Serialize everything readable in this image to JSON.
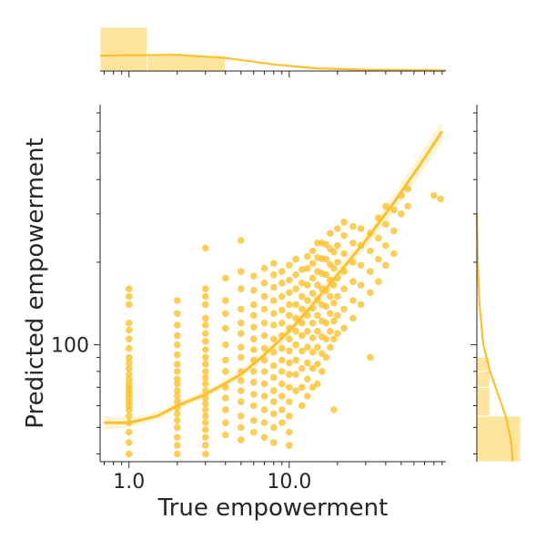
{
  "colors": {
    "accent": "#fbc02d",
    "fill_light": "#fde08c",
    "text": "#262626"
  },
  "chart_data": {
    "type": "scatter",
    "kind": "jointplot with regression fit and marginal histograms + KDE",
    "xlabel": "True empowerment",
    "ylabel": "Predicted empowerment",
    "xscale": "log",
    "yscale": "log",
    "xlim": [
      0.66,
      95
    ],
    "ylim": [
      37.5,
      750
    ],
    "x_tick_labels": [
      {
        "value": 1,
        "label": "1.0"
      },
      {
        "value": 10,
        "label": "10.0"
      }
    ],
    "y_tick_labels": [
      {
        "value": 100,
        "label": "100"
      }
    ],
    "points": [
      [
        1,
        40
      ],
      [
        1,
        44
      ],
      [
        1,
        48
      ],
      [
        1,
        52
      ],
      [
        1,
        55
      ],
      [
        1,
        58
      ],
      [
        1,
        60
      ],
      [
        1,
        62
      ],
      [
        1,
        64
      ],
      [
        1,
        66
      ],
      [
        1,
        68
      ],
      [
        1,
        70
      ],
      [
        1,
        72
      ],
      [
        1,
        75
      ],
      [
        1,
        78
      ],
      [
        1,
        82
      ],
      [
        1,
        86
      ],
      [
        1,
        90
      ],
      [
        1,
        97
      ],
      [
        1,
        105
      ],
      [
        1,
        113
      ],
      [
        1,
        120
      ],
      [
        1,
        140
      ],
      [
        1,
        150
      ],
      [
        1,
        160
      ],
      [
        2,
        40
      ],
      [
        2,
        43
      ],
      [
        2,
        46
      ],
      [
        2,
        50
      ],
      [
        2,
        53
      ],
      [
        2,
        56
      ],
      [
        2,
        59
      ],
      [
        2,
        62
      ],
      [
        2,
        65
      ],
      [
        2,
        68
      ],
      [
        2,
        72
      ],
      [
        2,
        75
      ],
      [
        2,
        80
      ],
      [
        2,
        85
      ],
      [
        2,
        92
      ],
      [
        2,
        100
      ],
      [
        2,
        108
      ],
      [
        2,
        118
      ],
      [
        2,
        130
      ],
      [
        2,
        145
      ],
      [
        3,
        40
      ],
      [
        3,
        43
      ],
      [
        3,
        46
      ],
      [
        3,
        49
      ],
      [
        3,
        52
      ],
      [
        3,
        55
      ],
      [
        3,
        58
      ],
      [
        3,
        61
      ],
      [
        3,
        64
      ],
      [
        3,
        68
      ],
      [
        3,
        72
      ],
      [
        3,
        76
      ],
      [
        3,
        80
      ],
      [
        3,
        85
      ],
      [
        3,
        90
      ],
      [
        3,
        96
      ],
      [
        3,
        103
      ],
      [
        3,
        110
      ],
      [
        3,
        118
      ],
      [
        3,
        125
      ],
      [
        3,
        140
      ],
      [
        3,
        150
      ],
      [
        3,
        160
      ],
      [
        3,
        225
      ],
      [
        4,
        47
      ],
      [
        4,
        52
      ],
      [
        4,
        58
      ],
      [
        4,
        64
      ],
      [
        4,
        70
      ],
      [
        4,
        80
      ],
      [
        4,
        88
      ],
      [
        4,
        100
      ],
      [
        4,
        115
      ],
      [
        4,
        130
      ],
      [
        4,
        145
      ],
      [
        4,
        175
      ],
      [
        5,
        45
      ],
      [
        5,
        50
      ],
      [
        5,
        55
      ],
      [
        5,
        62
      ],
      [
        5,
        68
      ],
      [
        5,
        74
      ],
      [
        5,
        80
      ],
      [
        5,
        90
      ],
      [
        5,
        98
      ],
      [
        5,
        110
      ],
      [
        5,
        120
      ],
      [
        5,
        135
      ],
      [
        5,
        160
      ],
      [
        5,
        185
      ],
      [
        5,
        240
      ],
      [
        6,
        48
      ],
      [
        6,
        53
      ],
      [
        6,
        60
      ],
      [
        6,
        66
      ],
      [
        6,
        73
      ],
      [
        6,
        80
      ],
      [
        6,
        88
      ],
      [
        6,
        96
      ],
      [
        6,
        105
      ],
      [
        6,
        116
      ],
      [
        6,
        128
      ],
      [
        6,
        140
      ],
      [
        6,
        158
      ],
      [
        6,
        178
      ],
      [
        7,
        46
      ],
      [
        7,
        52
      ],
      [
        7,
        58
      ],
      [
        7,
        65
      ],
      [
        7,
        72
      ],
      [
        7,
        80
      ],
      [
        7,
        88
      ],
      [
        7,
        97
      ],
      [
        7,
        108
      ],
      [
        7,
        120
      ],
      [
        7,
        135
      ],
      [
        7,
        150
      ],
      [
        7,
        168
      ],
      [
        7,
        190
      ],
      [
        8,
        44
      ],
      [
        8,
        50
      ],
      [
        8,
        56
      ],
      [
        8,
        62
      ],
      [
        8,
        68
      ],
      [
        8,
        76
      ],
      [
        8,
        84
      ],
      [
        8,
        94
      ],
      [
        8,
        105
      ],
      [
        8,
        118
      ],
      [
        8,
        130
      ],
      [
        8,
        145
      ],
      [
        8,
        162
      ],
      [
        8,
        180
      ],
      [
        8,
        198
      ],
      [
        9,
        52
      ],
      [
        9,
        58
      ],
      [
        9,
        65
      ],
      [
        9,
        72
      ],
      [
        9,
        80
      ],
      [
        9,
        88
      ],
      [
        9,
        97
      ],
      [
        9,
        108
      ],
      [
        9,
        120
      ],
      [
        9,
        134
      ],
      [
        9,
        150
      ],
      [
        9,
        168
      ],
      [
        9,
        185
      ],
      [
        10,
        43
      ],
      [
        10,
        48
      ],
      [
        10,
        55
      ],
      [
        10,
        62
      ],
      [
        10,
        70
      ],
      [
        10,
        78
      ],
      [
        10,
        86
      ],
      [
        10,
        95
      ],
      [
        10,
        105
      ],
      [
        10,
        115
      ],
      [
        10,
        128
      ],
      [
        10,
        140
      ],
      [
        10,
        155
      ],
      [
        10,
        172
      ],
      [
        10,
        195
      ],
      [
        11,
        68
      ],
      [
        11,
        78
      ],
      [
        11,
        88
      ],
      [
        11,
        100
      ],
      [
        11,
        112
      ],
      [
        11,
        125
      ],
      [
        11,
        140
      ],
      [
        11,
        160
      ],
      [
        11,
        180
      ],
      [
        11,
        205
      ],
      [
        12,
        60
      ],
      [
        12,
        70
      ],
      [
        12,
        82
      ],
      [
        12,
        95
      ],
      [
        12,
        108
      ],
      [
        12,
        120
      ],
      [
        12,
        135
      ],
      [
        12,
        150
      ],
      [
        12,
        168
      ],
      [
        12,
        188
      ],
      [
        13,
        65
      ],
      [
        13,
        75
      ],
      [
        13,
        86
      ],
      [
        13,
        98
      ],
      [
        13,
        112
      ],
      [
        13,
        128
      ],
      [
        13,
        145
      ],
      [
        13,
        165
      ],
      [
        13,
        190
      ],
      [
        13,
        210
      ],
      [
        14,
        70
      ],
      [
        14,
        82
      ],
      [
        14,
        94
      ],
      [
        14,
        106
      ],
      [
        14,
        120
      ],
      [
        14,
        136
      ],
      [
        14,
        154
      ],
      [
        14,
        175
      ],
      [
        14,
        198
      ],
      [
        14,
        220
      ],
      [
        15,
        72
      ],
      [
        15,
        85
      ],
      [
        15,
        98
      ],
      [
        15,
        112
      ],
      [
        15,
        128
      ],
      [
        15,
        146
      ],
      [
        15,
        165
      ],
      [
        15,
        185
      ],
      [
        15,
        208
      ],
      [
        15,
        235
      ],
      [
        16,
        80
      ],
      [
        16,
        93
      ],
      [
        16,
        107
      ],
      [
        16,
        122
      ],
      [
        16,
        140
      ],
      [
        16,
        160
      ],
      [
        16,
        182
      ],
      [
        16,
        206
      ],
      [
        16,
        235
      ],
      [
        17,
        90
      ],
      [
        17,
        105
      ],
      [
        17,
        120
      ],
      [
        17,
        138
      ],
      [
        17,
        158
      ],
      [
        17,
        180
      ],
      [
        17,
        205
      ],
      [
        17,
        232
      ],
      [
        18,
        98
      ],
      [
        18,
        112
      ],
      [
        18,
        130
      ],
      [
        18,
        150
      ],
      [
        18,
        172
      ],
      [
        18,
        196
      ],
      [
        18,
        224
      ],
      [
        18,
        255
      ],
      [
        19,
        58
      ],
      [
        19,
        105
      ],
      [
        19,
        122
      ],
      [
        19,
        142
      ],
      [
        19,
        165
      ],
      [
        19,
        190
      ],
      [
        19,
        218
      ],
      [
        20,
        110
      ],
      [
        20,
        128
      ],
      [
        20,
        150
      ],
      [
        20,
        175
      ],
      [
        20,
        200
      ],
      [
        20,
        230
      ],
      [
        20,
        265
      ],
      [
        22,
        115
      ],
      [
        22,
        135
      ],
      [
        22,
        160
      ],
      [
        22,
        185
      ],
      [
        22,
        215
      ],
      [
        22,
        250
      ],
      [
        22,
        280
      ],
      [
        25,
        125
      ],
      [
        25,
        145
      ],
      [
        25,
        170
      ],
      [
        25,
        200
      ],
      [
        25,
        235
      ],
      [
        25,
        270
      ],
      [
        28,
        140
      ],
      [
        28,
        165
      ],
      [
        28,
        195
      ],
      [
        28,
        230
      ],
      [
        28,
        265
      ],
      [
        32,
        90
      ],
      [
        32,
        155
      ],
      [
        32,
        185
      ],
      [
        32,
        220
      ],
      [
        32,
        255
      ],
      [
        36,
        170
      ],
      [
        36,
        205
      ],
      [
        36,
        245
      ],
      [
        36,
        290
      ],
      [
        40,
        195
      ],
      [
        40,
        230
      ],
      [
        40,
        275
      ],
      [
        40,
        320
      ],
      [
        45,
        215
      ],
      [
        45,
        260
      ],
      [
        45,
        310
      ],
      [
        50,
        300
      ],
      [
        50,
        350
      ],
      [
        55,
        320
      ],
      [
        55,
        370
      ],
      [
        80,
        350
      ],
      [
        88,
        340
      ]
    ],
    "regression": {
      "style": "lowess-like fit with confidence band",
      "curve": [
        [
          0.7,
          52
        ],
        [
          1.0,
          52
        ],
        [
          1.5,
          55
        ],
        [
          2,
          60
        ],
        [
          3,
          66
        ],
        [
          5,
          78
        ],
        [
          7,
          92
        ],
        [
          10,
          112
        ],
        [
          14,
          140
        ],
        [
          20,
          180
        ],
        [
          30,
          240
        ],
        [
          45,
          330
        ],
        [
          65,
          450
        ],
        [
          90,
          600
        ]
      ],
      "band_lower": [
        [
          0.7,
          49
        ],
        [
          1.0,
          50
        ],
        [
          1.5,
          53
        ],
        [
          2,
          58
        ],
        [
          3,
          64
        ],
        [
          5,
          75
        ],
        [
          7,
          88
        ],
        [
          10,
          107
        ],
        [
          14,
          133
        ],
        [
          20,
          170
        ],
        [
          30,
          225
        ],
        [
          45,
          305
        ],
        [
          65,
          410
        ],
        [
          90,
          545
        ]
      ],
      "band_upper": [
        [
          0.7,
          55
        ],
        [
          1.0,
          54
        ],
        [
          1.5,
          57
        ],
        [
          2,
          62
        ],
        [
          3,
          68
        ],
        [
          5,
          81
        ],
        [
          7,
          96
        ],
        [
          10,
          117
        ],
        [
          14,
          147
        ],
        [
          20,
          190
        ],
        [
          30,
          255
        ],
        [
          45,
          355
        ],
        [
          65,
          490
        ],
        [
          90,
          655
        ]
      ]
    },
    "marginal_x": {
      "histogram": {
        "bin_edges": [
          0.66,
          1.3,
          4.0
        ],
        "heights": [
          1.0,
          0.35
        ]
      },
      "kde": [
        [
          0.66,
          0.35
        ],
        [
          1.0,
          0.36
        ],
        [
          2,
          0.37
        ],
        [
          4,
          0.3
        ],
        [
          8,
          0.15
        ],
        [
          15,
          0.06
        ],
        [
          30,
          0.03
        ],
        [
          60,
          0.02
        ],
        [
          95,
          0.015
        ]
      ]
    },
    "marginal_y": {
      "histogram": {
        "bin_edges": [
          37.5,
          55,
          70,
          80,
          90
        ],
        "widths": [
          1.0,
          0.3,
          0.3,
          0.3
        ]
      },
      "kde": [
        [
          37.5,
          0.82
        ],
        [
          45,
          0.78
        ],
        [
          55,
          0.66
        ],
        [
          65,
          0.5
        ],
        [
          80,
          0.3
        ],
        [
          100,
          0.15
        ],
        [
          140,
          0.06
        ],
        [
          200,
          0.02
        ],
        [
          300,
          0.0
        ]
      ]
    }
  }
}
